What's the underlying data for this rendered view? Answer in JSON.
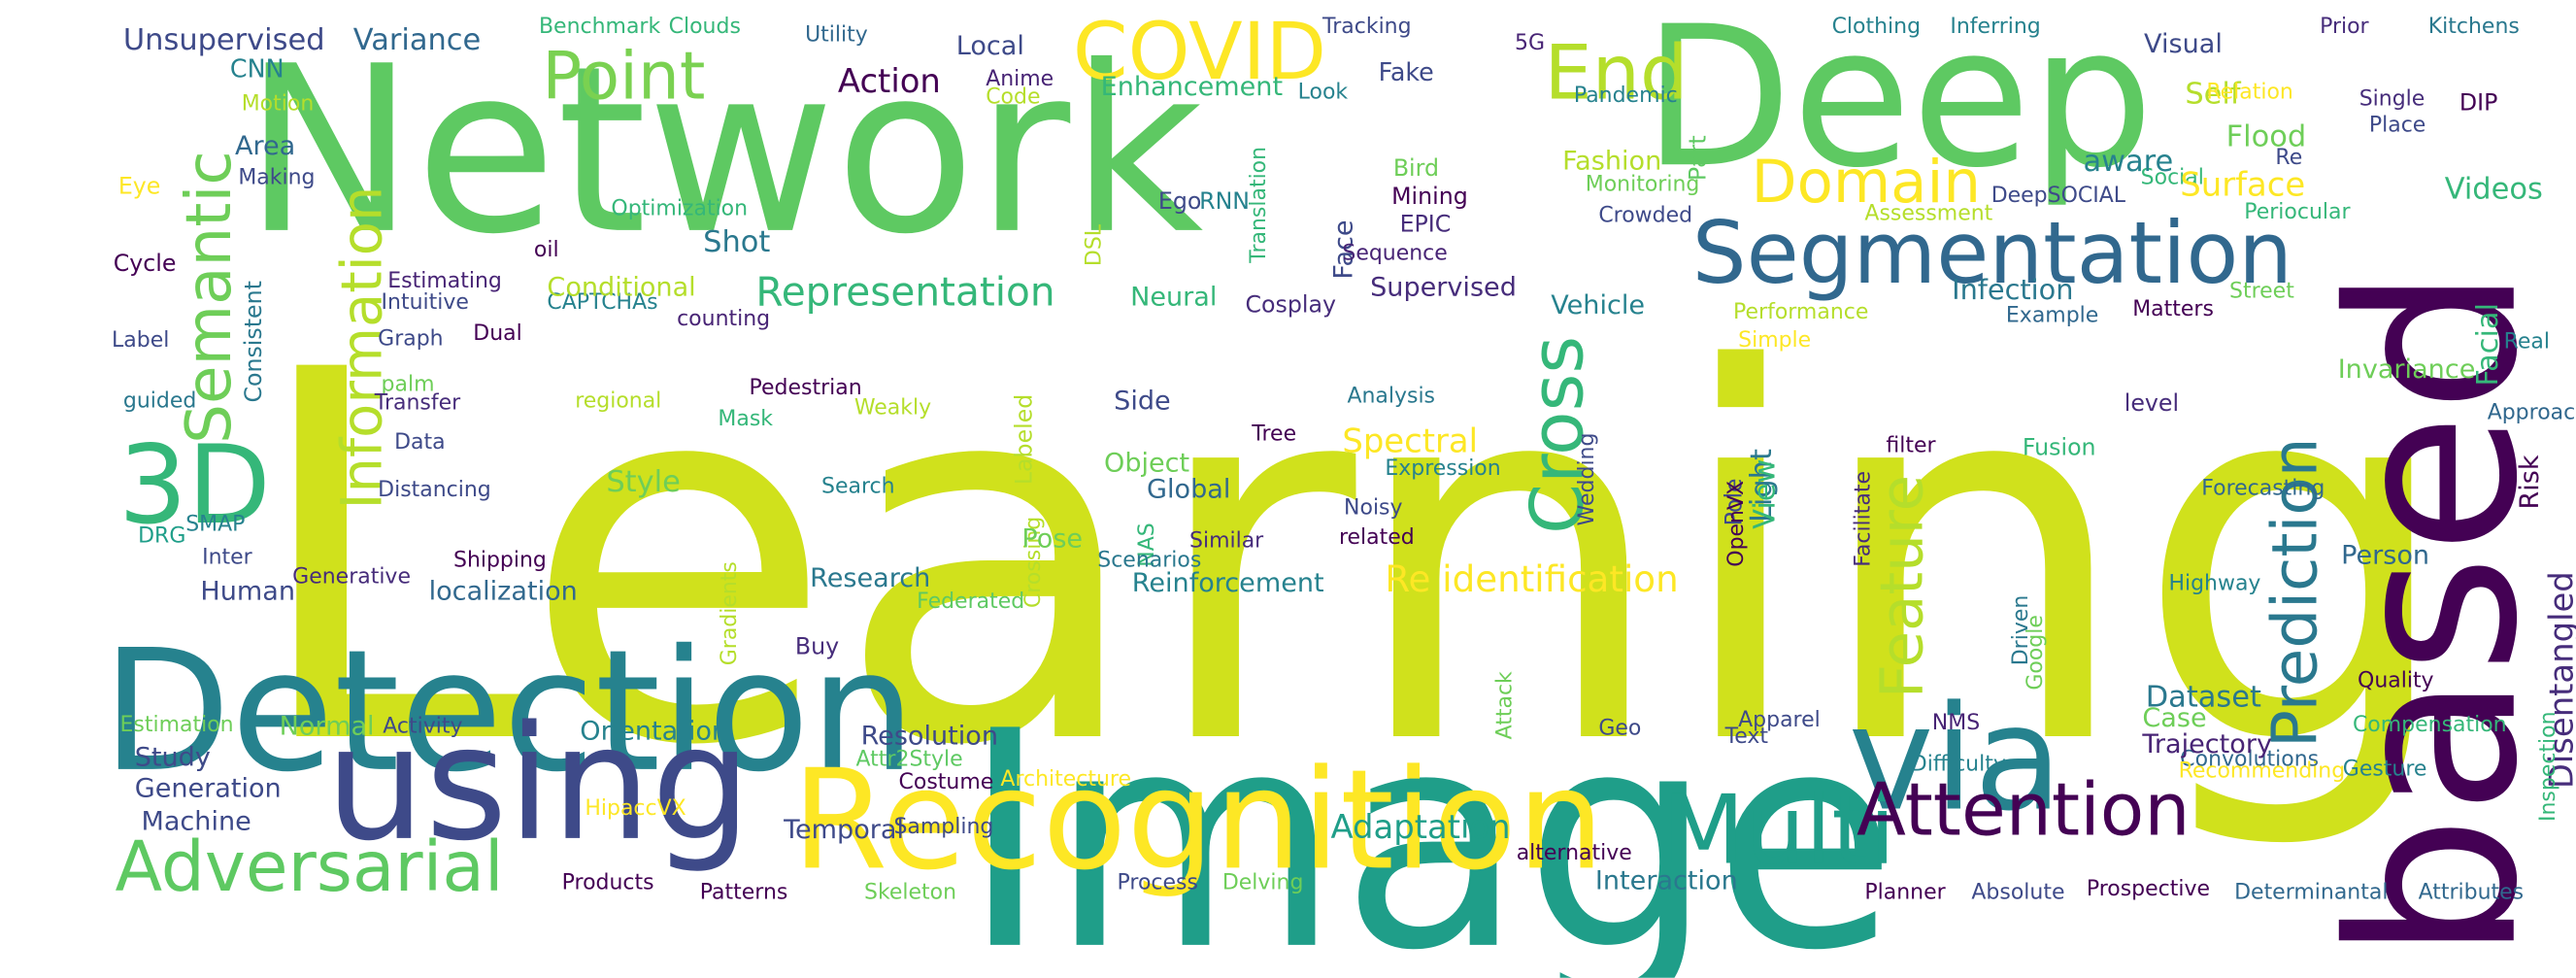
{
  "words": [
    {
      "text": "Learning",
      "color": "#d0e11c"
    },
    {
      "text": "Network",
      "color": "#5ec962"
    },
    {
      "text": "Image",
      "color": "#1f9e89"
    },
    {
      "text": "based",
      "color": "#440154"
    },
    {
      "text": "Deep",
      "color": "#5ec962"
    },
    {
      "text": "Detection",
      "color": "#26828e"
    },
    {
      "text": "using",
      "color": "#3e4a89"
    },
    {
      "text": "Recognition",
      "color": "#fde725"
    },
    {
      "text": "via",
      "color": "#26828e"
    },
    {
      "text": "Segmentation",
      "color": "#31688e"
    },
    {
      "text": "Adversarial",
      "color": "#5ec962"
    },
    {
      "text": "Multi",
      "color": "#1f9e89"
    },
    {
      "text": "Attention",
      "color": "#440154"
    },
    {
      "text": "3D",
      "color": "#35b779"
    },
    {
      "text": "COVID",
      "color": "#fde725"
    },
    {
      "text": "End",
      "color": "#b5de2b"
    },
    {
      "text": "Point",
      "color": "#7ad151"
    },
    {
      "text": "Semantic",
      "color": "#6ece58"
    },
    {
      "text": "Information",
      "color": "#b5de2b"
    },
    {
      "text": "Domain",
      "color": "#fde725"
    },
    {
      "text": "Cross",
      "color": "#35b779"
    },
    {
      "text": "Feature",
      "color": "#b5de2b"
    },
    {
      "text": "Prediction",
      "color": "#2a788e"
    },
    {
      "text": "Representation",
      "color": "#35b779"
    },
    {
      "text": "Re identification",
      "color": "#fde725"
    },
    {
      "text": "Disentangled",
      "color": "#472d7b"
    },
    {
      "text": "Unsupervised",
      "color": "#3e4a89"
    },
    {
      "text": "Variance",
      "color": "#31688e"
    },
    {
      "text": "Benchmark",
      "color": "#35b779"
    },
    {
      "text": "Clouds",
      "color": "#35b779"
    },
    {
      "text": "Utility",
      "color": "#31688e"
    },
    {
      "text": "Tracking",
      "color": "#3e4a89"
    },
    {
      "text": "5G",
      "color": "#482475"
    },
    {
      "text": "Clothing",
      "color": "#26828e"
    },
    {
      "text": "Inferring",
      "color": "#26828e"
    },
    {
      "text": "Prior",
      "color": "#472d7b"
    },
    {
      "text": "Kitchens",
      "color": "#2a788e"
    },
    {
      "text": "CNN",
      "color": "#26828e"
    },
    {
      "text": "Local",
      "color": "#3e4a89"
    },
    {
      "text": "Action",
      "color": "#440154"
    },
    {
      "text": "Anime",
      "color": "#482475"
    },
    {
      "text": "Code",
      "color": "#b5de2b"
    },
    {
      "text": "Enhancement",
      "color": "#35b779"
    },
    {
      "text": "Look",
      "color": "#26828e"
    },
    {
      "text": "Fake",
      "color": "#3e4a89"
    },
    {
      "text": "Visual",
      "color": "#3e4a89"
    },
    {
      "text": "Self",
      "color": "#b5de2b"
    },
    {
      "text": "Relation",
      "color": "#fde725"
    },
    {
      "text": "Motion",
      "color": "#b5de2b"
    },
    {
      "text": "Pandemic",
      "color": "#26828e"
    },
    {
      "text": "Part",
      "color": "#5ec962"
    },
    {
      "text": "Re",
      "color": "#3e4a89"
    },
    {
      "text": "Single",
      "color": "#472d7b"
    },
    {
      "text": "DIP",
      "color": "#440154"
    },
    {
      "text": "Place",
      "color": "#3e4a89"
    },
    {
      "text": "Area",
      "color": "#31688e"
    },
    {
      "text": "Making",
      "color": "#3e4a89"
    },
    {
      "text": "Eye",
      "color": "#fde725"
    },
    {
      "text": "Flood",
      "color": "#6ece58"
    },
    {
      "text": "Social",
      "color": "#35b779"
    },
    {
      "text": "Bird",
      "color": "#6ece58"
    },
    {
      "text": "Mining",
      "color": "#440154"
    },
    {
      "text": "Ego",
      "color": "#3e4a89"
    },
    {
      "text": "RNN",
      "color": "#26828e"
    },
    {
      "text": "Translation",
      "color": "#35b779"
    },
    {
      "text": "Fashion",
      "color": "#b5de2b"
    },
    {
      "text": "aware",
      "color": "#26828e"
    },
    {
      "text": "Surface",
      "color": "#fde725"
    },
    {
      "text": "DeepSOCIAL",
      "color": "#3e4a89"
    },
    {
      "text": "Videos",
      "color": "#35b779"
    },
    {
      "text": "Optimization",
      "color": "#35b779"
    },
    {
      "text": "Monitoring",
      "color": "#6ece58"
    },
    {
      "text": "Assessment",
      "color": "#b5de2b"
    },
    {
      "text": "Periocular",
      "color": "#35b779"
    },
    {
      "text": "Facial",
      "color": "#35b779"
    },
    {
      "text": "Cycle",
      "color": "#440154"
    },
    {
      "text": "oil",
      "color": "#440154"
    },
    {
      "text": "DSL",
      "color": "#b5de2b"
    },
    {
      "text": "Face",
      "color": "#3e4a89"
    },
    {
      "text": "EPIC",
      "color": "#472d7b"
    },
    {
      "text": "Crowded",
      "color": "#3e4a89"
    },
    {
      "text": "Consistent",
      "color": "#2a788e"
    },
    {
      "text": "Estimating",
      "color": "#482475"
    },
    {
      "text": "Shot",
      "color": "#2a788e"
    },
    {
      "text": "Sequence",
      "color": "#482475"
    },
    {
      "text": "Intuitive",
      "color": "#3e4a89"
    },
    {
      "text": "Supervised",
      "color": "#472d7b"
    },
    {
      "text": "Infection",
      "color": "#2a788e"
    },
    {
      "text": "Street",
      "color": "#6ece58"
    },
    {
      "text": "CAPTCHAs",
      "color": "#26828e"
    },
    {
      "text": "Conditional",
      "color": "#b5de2b"
    },
    {
      "text": "Neural",
      "color": "#35b779"
    },
    {
      "text": "Cosplay",
      "color": "#472d7b"
    },
    {
      "text": "Vehicle",
      "color": "#26828e"
    },
    {
      "text": "Performance",
      "color": "#b5de2b"
    },
    {
      "text": "Example",
      "color": "#31688e"
    },
    {
      "text": "Matters",
      "color": "#440154"
    },
    {
      "text": "Label",
      "color": "#3e4a89"
    },
    {
      "text": "counting",
      "color": "#482475"
    },
    {
      "text": "Graph",
      "color": "#3e4a89"
    },
    {
      "text": "Simple",
      "color": "#fde725"
    },
    {
      "text": "Real",
      "color": "#26828e"
    },
    {
      "text": "Dual",
      "color": "#440154"
    },
    {
      "text": "palm",
      "color": "#6ece58"
    },
    {
      "text": "Pedestrian",
      "color": "#440154"
    },
    {
      "text": "Invariance",
      "color": "#6ece58"
    },
    {
      "text": "Approach",
      "color": "#31688e"
    },
    {
      "text": "guided",
      "color": "#2a788e"
    },
    {
      "text": "Transfer",
      "color": "#472d7b"
    },
    {
      "text": "regional",
      "color": "#b5de2b"
    },
    {
      "text": "Weakly",
      "color": "#b5de2b"
    },
    {
      "text": "Side",
      "color": "#3e4a89"
    },
    {
      "text": "Analysis",
      "color": "#2a788e"
    },
    {
      "text": "level",
      "color": "#472d7b"
    },
    {
      "text": "Mask",
      "color": "#35b779"
    },
    {
      "text": "Labeled",
      "color": "#b5de2b"
    },
    {
      "text": "filter",
      "color": "#440154"
    },
    {
      "text": "Data",
      "color": "#3e4a89"
    },
    {
      "text": "Spectral",
      "color": "#fde725"
    },
    {
      "text": "Tree",
      "color": "#440154"
    },
    {
      "text": "Pole",
      "color": "#3e4a89"
    },
    {
      "text": "Fusion",
      "color": "#35b779"
    },
    {
      "text": "Risk",
      "color": "#440154"
    },
    {
      "text": "Style",
      "color": "#6ece58"
    },
    {
      "text": "Object",
      "color": "#6ece58"
    },
    {
      "text": "Expression",
      "color": "#26828e"
    },
    {
      "text": "Wedding",
      "color": "#3e4a89"
    },
    {
      "text": "OpenVX",
      "color": "#440154"
    },
    {
      "text": "Facilitate",
      "color": "#472d7b"
    },
    {
      "text": "Forecasting",
      "color": "#31688e"
    },
    {
      "text": "Search",
      "color": "#26828e"
    },
    {
      "text": "Global",
      "color": "#31688e"
    },
    {
      "text": "Light",
      "color": "#2a788e"
    },
    {
      "text": "Distancing",
      "color": "#3e4a89"
    },
    {
      "text": "Crossing",
      "color": "#b5de2b"
    },
    {
      "text": "View",
      "color": "#35b779"
    },
    {
      "text": "SMAP",
      "color": "#26828e"
    },
    {
      "text": "Noisy",
      "color": "#3e4a89"
    },
    {
      "text": "DRG",
      "color": "#1f9e89"
    },
    {
      "text": "Inter",
      "color": "#3e4a89"
    },
    {
      "text": "Pose",
      "color": "#6ece58"
    },
    {
      "text": "NAS",
      "color": "#35b779"
    },
    {
      "text": "Similar",
      "color": "#472d7b"
    },
    {
      "text": "related",
      "color": "#440154"
    },
    {
      "text": "Shipping",
      "color": "#440154"
    },
    {
      "text": "Scenarios",
      "color": "#2a788e"
    },
    {
      "text": "Person",
      "color": "#31688e"
    },
    {
      "text": "Generative",
      "color": "#472d7b"
    },
    {
      "text": "localization",
      "color": "#31688e"
    },
    {
      "text": "Human",
      "color": "#3e4a89"
    },
    {
      "text": "Research",
      "color": "#2a788e"
    },
    {
      "text": "Reinforcement",
      "color": "#26828e"
    },
    {
      "text": "Highway",
      "color": "#26828e"
    },
    {
      "text": "Driven",
      "color": "#2a788e"
    },
    {
      "text": "Federated",
      "color": "#5ec962"
    },
    {
      "text": "Gradients",
      "color": "#b5de2b"
    },
    {
      "text": "Google",
      "color": "#6ece58"
    },
    {
      "text": "Buy",
      "color": "#472d7b"
    },
    {
      "text": "Quality",
      "color": "#440154"
    },
    {
      "text": "Case",
      "color": "#6ece58"
    },
    {
      "text": "Dataset",
      "color": "#2a788e"
    },
    {
      "text": "Estimation",
      "color": "#6ece58"
    },
    {
      "text": "Normal",
      "color": "#6ece58"
    },
    {
      "text": "Activity",
      "color": "#3e4a89"
    },
    {
      "text": "Orientation",
      "color": "#26828e"
    },
    {
      "text": "Resolution",
      "color": "#3e4a89"
    },
    {
      "text": "Attack",
      "color": "#6ece58"
    },
    {
      "text": "Geo",
      "color": "#3e4a89"
    },
    {
      "text": "Apparel",
      "color": "#3e4a89"
    },
    {
      "text": "Compensation",
      "color": "#35b779"
    },
    {
      "text": "Study",
      "color": "#3e4a89"
    },
    {
      "text": "Attr2Style",
      "color": "#5ec962"
    },
    {
      "text": "Convolutions",
      "color": "#31688e"
    },
    {
      "text": "Generation",
      "color": "#3e4a89"
    },
    {
      "text": "Architecture",
      "color": "#fde725"
    },
    {
      "text": "Costume",
      "color": "#440154"
    },
    {
      "text": "Text",
      "color": "#3e4a89"
    },
    {
      "text": "NMS",
      "color": "#482475"
    },
    {
      "text": "Trajectory",
      "color": "#482475"
    },
    {
      "text": "Machine",
      "color": "#3e4a89"
    },
    {
      "text": "Difficulty",
      "color": "#26828e"
    },
    {
      "text": "Gesture",
      "color": "#26828e"
    },
    {
      "text": "Recommending",
      "color": "#fde725"
    },
    {
      "text": "Inspection",
      "color": "#35b779"
    },
    {
      "text": "HipaccVX",
      "color": "#fde725"
    },
    {
      "text": "alternative",
      "color": "#440154"
    },
    {
      "text": "Temporal",
      "color": "#3e4a89"
    },
    {
      "text": "Sampling",
      "color": "#3e4a89"
    },
    {
      "text": "Adaptation",
      "color": "#1f9e89"
    },
    {
      "text": "Products",
      "color": "#440154"
    },
    {
      "text": "Patterns",
      "color": "#440154"
    },
    {
      "text": "Skeleton",
      "color": "#6ece58"
    },
    {
      "text": "Process",
      "color": "#3e4a89"
    },
    {
      "text": "Delving",
      "color": "#6ece58"
    },
    {
      "text": "Interaction",
      "color": "#2a788e"
    },
    {
      "text": "Planner",
      "color": "#440154"
    },
    {
      "text": "Absolute",
      "color": "#3e4a89"
    },
    {
      "text": "Prospective",
      "color": "#440154"
    },
    {
      "text": "Determinantal",
      "color": "#31688e"
    },
    {
      "text": "Attributes",
      "color": "#31688e"
    }
  ]
}
